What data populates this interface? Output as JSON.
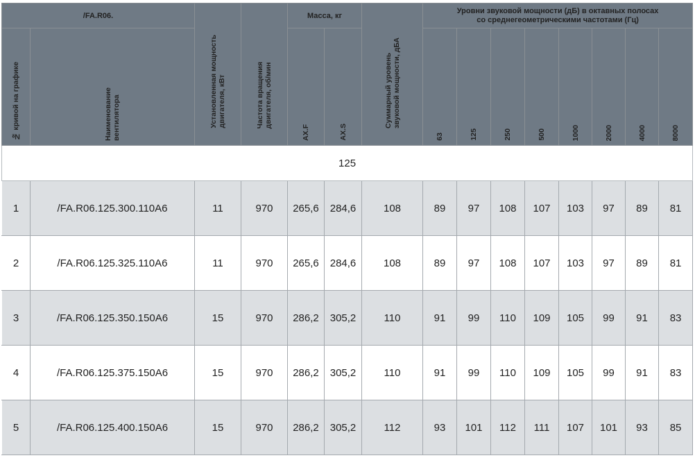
{
  "header": {
    "series": "/FA.R06.",
    "mass_group": "Масса, кг",
    "sound_group": "Уровни звуковой мощности (дБ) в октавных полосах\nсо среднегеометрическими частотами (Гц)",
    "col_curve": "№ кривой на графике",
    "col_name": "Наименование\nвентилятора",
    "col_power": "Установленная мощность\nдвигателя, кВт",
    "col_speed": "Частота вращения\nдвигателя, об/мин",
    "col_axf": "AX.F",
    "col_axs": "AX.S",
    "col_total": "Суммарный уровень\nзвуковой мощности, дБА",
    "freqs": [
      "63",
      "125",
      "250",
      "500",
      "1000",
      "2000",
      "4000",
      "8000"
    ]
  },
  "section_label": "125",
  "rows": [
    {
      "n": "1",
      "name": "/FA.R06.125.300.110A6",
      "power": "11",
      "speed": "970",
      "axf": "265,6",
      "axs": "284,6",
      "total": "108",
      "levels": [
        "89",
        "97",
        "108",
        "107",
        "103",
        "97",
        "89",
        "81"
      ]
    },
    {
      "n": "2",
      "name": "/FA.R06.125.325.110A6",
      "power": "11",
      "speed": "970",
      "axf": "265,6",
      "axs": "284,6",
      "total": "108",
      "levels": [
        "89",
        "97",
        "108",
        "107",
        "103",
        "97",
        "89",
        "81"
      ]
    },
    {
      "n": "3",
      "name": "/FA.R06.125.350.150A6",
      "power": "15",
      "speed": "970",
      "axf": "286,2",
      "axs": "305,2",
      "total": "110",
      "levels": [
        "91",
        "99",
        "110",
        "109",
        "105",
        "99",
        "91",
        "83"
      ]
    },
    {
      "n": "4",
      "name": "/FA.R06.125.375.150A6",
      "power": "15",
      "speed": "970",
      "axf": "286,2",
      "axs": "305,2",
      "total": "110",
      "levels": [
        "91",
        "99",
        "110",
        "109",
        "105",
        "99",
        "91",
        "83"
      ]
    },
    {
      "n": "5",
      "name": "/FA.R06.125.400.150A6",
      "power": "15",
      "speed": "970",
      "axf": "286,2",
      "axs": "305,2",
      "total": "112",
      "levels": [
        "93",
        "101",
        "112",
        "111",
        "107",
        "101",
        "93",
        "85"
      ]
    }
  ]
}
